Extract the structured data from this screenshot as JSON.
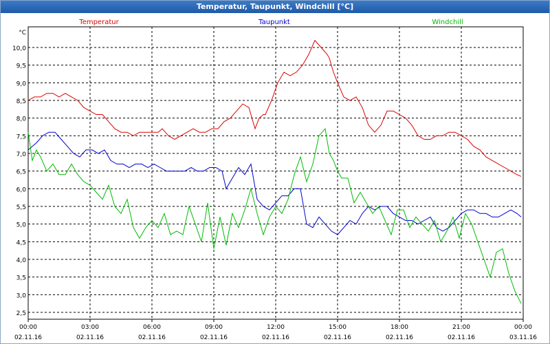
{
  "title": "Temperatur, Taupunkt, Windchill [°C]",
  "chart_data": {
    "type": "line",
    "title": "Temperatur, Taupunkt, Windchill [°C]",
    "ylabel": "°C",
    "xlabel": "",
    "ylim": [
      2.5,
      10.5
    ],
    "grid": true,
    "y_ticks": [
      "2,5",
      "3,0",
      "3,5",
      "4,0",
      "4,5",
      "5,0",
      "5,5",
      "6,0",
      "6,5",
      "7,0",
      "7,5",
      "8,0",
      "8,5",
      "9,0",
      "9,5",
      "10,0"
    ],
    "x_ticks": [
      {
        "time": "00:00",
        "date": "02.11.16"
      },
      {
        "time": "03:00",
        "date": "02.11.16"
      },
      {
        "time": "06:00",
        "date": "02.11.16"
      },
      {
        "time": "09:00",
        "date": "02.11.16"
      },
      {
        "time": "12:00",
        "date": "02.11.16"
      },
      {
        "time": "15:00",
        "date": "02.11.16"
      },
      {
        "time": "18:00",
        "date": "02.11.16"
      },
      {
        "time": "21:00",
        "date": "02.11.16"
      },
      {
        "time": "00:00",
        "date": "03.11.16"
      }
    ],
    "x_range_hours": [
      0,
      24
    ],
    "series": [
      {
        "name": "Temperatur",
        "color": "#dd0000",
        "x": [
          0,
          0.3,
          0.6,
          0.9,
          1.2,
          1.5,
          1.8,
          2.1,
          2.4,
          2.7,
          3.0,
          3.3,
          3.6,
          3.9,
          4.2,
          4.5,
          4.8,
          5.1,
          5.4,
          5.7,
          6.0,
          6.3,
          6.5,
          6.8,
          7.1,
          7.4,
          7.7,
          8.0,
          8.3,
          8.6,
          8.9,
          9.2,
          9.5,
          9.8,
          10.1,
          10.4,
          10.7,
          11.0,
          11.2,
          11.4,
          11.5,
          11.8,
          12.1,
          12.4,
          12.7,
          13.0,
          13.3,
          13.6,
          13.9,
          14.2,
          14.5,
          14.6,
          14.8,
          15.0,
          15.3,
          15.6,
          15.9,
          16.2,
          16.5,
          16.8,
          17.1,
          17.4,
          17.7,
          18.0,
          18.3,
          18.6,
          18.9,
          19.2,
          19.5,
          19.8,
          20.1,
          20.4,
          20.7,
          21.0,
          21.3,
          21.6,
          21.9,
          22.2,
          22.5,
          22.8,
          23.1,
          23.4,
          23.7,
          23.9
        ],
        "values": [
          8.5,
          8.6,
          8.6,
          8.7,
          8.7,
          8.6,
          8.7,
          8.6,
          8.5,
          8.3,
          8.2,
          8.1,
          8.1,
          7.9,
          7.7,
          7.6,
          7.6,
          7.5,
          7.6,
          7.6,
          7.6,
          7.6,
          7.7,
          7.5,
          7.4,
          7.5,
          7.6,
          7.7,
          7.6,
          7.6,
          7.7,
          7.7,
          7.9,
          8.0,
          8.2,
          8.4,
          8.3,
          7.7,
          8.0,
          8.1,
          8.1,
          8.5,
          9.0,
          9.3,
          9.2,
          9.3,
          9.5,
          9.8,
          10.2,
          10.0,
          9.8,
          9.7,
          9.3,
          9.0,
          8.6,
          8.5,
          8.6,
          8.3,
          7.8,
          7.6,
          7.8,
          8.2,
          8.2,
          8.1,
          8.0,
          7.8,
          7.5,
          7.4,
          7.4,
          7.5,
          7.5,
          7.6,
          7.6,
          7.5,
          7.4,
          7.2,
          7.1,
          6.9,
          6.8,
          6.7,
          6.6,
          6.5,
          6.4,
          6.35
        ]
      },
      {
        "name": "Taupunkt",
        "color": "#0000cc",
        "x": [
          0,
          0.2,
          0.4,
          0.7,
          1.0,
          1.3,
          1.6,
          1.9,
          2.2,
          2.5,
          2.8,
          3.1,
          3.4,
          3.7,
          4.0,
          4.3,
          4.6,
          4.9,
          5.2,
          5.5,
          5.8,
          6.1,
          6.4,
          6.7,
          7.0,
          7.3,
          7.6,
          7.9,
          8.2,
          8.5,
          8.8,
          9.1,
          9.4,
          9.6,
          9.9,
          10.2,
          10.5,
          10.8,
          11.1,
          11.4,
          11.7,
          12.0,
          12.3,
          12.6,
          12.9,
          13.2,
          13.5,
          13.8,
          14.1,
          14.4,
          14.7,
          15.0,
          15.3,
          15.6,
          15.9,
          16.2,
          16.5,
          16.8,
          17.1,
          17.4,
          17.7,
          18.0,
          18.3,
          18.6,
          18.9,
          19.2,
          19.5,
          19.8,
          20.1,
          20.4,
          20.7,
          21.0,
          21.3,
          21.6,
          21.9,
          22.2,
          22.5,
          22.8,
          23.1,
          23.4,
          23.7,
          23.9
        ],
        "values": [
          7.1,
          7.2,
          7.3,
          7.5,
          7.6,
          7.6,
          7.4,
          7.2,
          7.0,
          6.9,
          7.1,
          7.1,
          7.0,
          7.1,
          6.8,
          6.7,
          6.7,
          6.6,
          6.7,
          6.7,
          6.6,
          6.7,
          6.6,
          6.5,
          6.5,
          6.5,
          6.5,
          6.6,
          6.5,
          6.5,
          6.6,
          6.6,
          6.5,
          6.0,
          6.3,
          6.6,
          6.4,
          6.7,
          5.7,
          5.5,
          5.4,
          5.6,
          5.8,
          5.8,
          6.0,
          6.0,
          5.0,
          4.9,
          5.2,
          5.0,
          4.8,
          4.7,
          4.9,
          5.1,
          5.0,
          5.3,
          5.5,
          5.4,
          5.5,
          5.5,
          5.3,
          5.2,
          5.1,
          5.1,
          5.0,
          5.1,
          5.2,
          4.9,
          4.8,
          4.9,
          5.1,
          5.3,
          5.4,
          5.4,
          5.3,
          5.3,
          5.2,
          5.2,
          5.3,
          5.4,
          5.3,
          5.2
        ]
      },
      {
        "name": "Windchill",
        "color": "#00bb00",
        "x": [
          0,
          0.2,
          0.4,
          0.6,
          0.9,
          1.2,
          1.5,
          1.8,
          2.1,
          2.4,
          2.7,
          3.0,
          3.3,
          3.6,
          3.9,
          4.2,
          4.5,
          4.8,
          5.1,
          5.4,
          5.7,
          6.0,
          6.3,
          6.6,
          6.9,
          7.2,
          7.5,
          7.8,
          8.1,
          8.4,
          8.7,
          9.0,
          9.3,
          9.6,
          9.9,
          10.2,
          10.5,
          10.8,
          11.1,
          11.4,
          11.7,
          12.0,
          12.3,
          12.6,
          12.9,
          13.2,
          13.5,
          13.8,
          14.1,
          14.4,
          14.6,
          14.8,
          15.0,
          15.2,
          15.5,
          15.8,
          16.1,
          16.4,
          16.7,
          17.0,
          17.3,
          17.6,
          17.9,
          18.2,
          18.5,
          18.8,
          19.1,
          19.4,
          19.7,
          20.0,
          20.3,
          20.6,
          20.9,
          21.2,
          21.5,
          21.8,
          22.1,
          22.4,
          22.7,
          23.0,
          23.3,
          23.6,
          23.9
        ],
        "values": [
          7.6,
          6.8,
          7.1,
          6.9,
          6.5,
          6.7,
          6.4,
          6.4,
          6.7,
          6.4,
          6.2,
          6.1,
          5.9,
          5.7,
          6.1,
          5.5,
          5.3,
          5.7,
          4.9,
          4.6,
          4.9,
          5.1,
          4.9,
          5.3,
          4.7,
          4.8,
          4.7,
          5.5,
          5.0,
          4.5,
          5.6,
          4.3,
          5.2,
          4.4,
          5.3,
          4.9,
          5.4,
          6.0,
          5.3,
          4.7,
          5.2,
          5.5,
          5.3,
          5.7,
          6.4,
          6.9,
          6.2,
          6.7,
          7.5,
          7.7,
          7.0,
          6.8,
          6.5,
          6.3,
          6.3,
          5.6,
          5.9,
          5.6,
          5.3,
          5.5,
          5.1,
          4.7,
          5.4,
          5.4,
          4.9,
          5.2,
          5.0,
          4.8,
          5.1,
          4.5,
          4.8,
          5.2,
          4.6,
          5.3,
          5.0,
          4.5,
          4.0,
          3.5,
          4.2,
          4.3,
          3.6,
          3.1,
          2.75
        ]
      }
    ]
  }
}
